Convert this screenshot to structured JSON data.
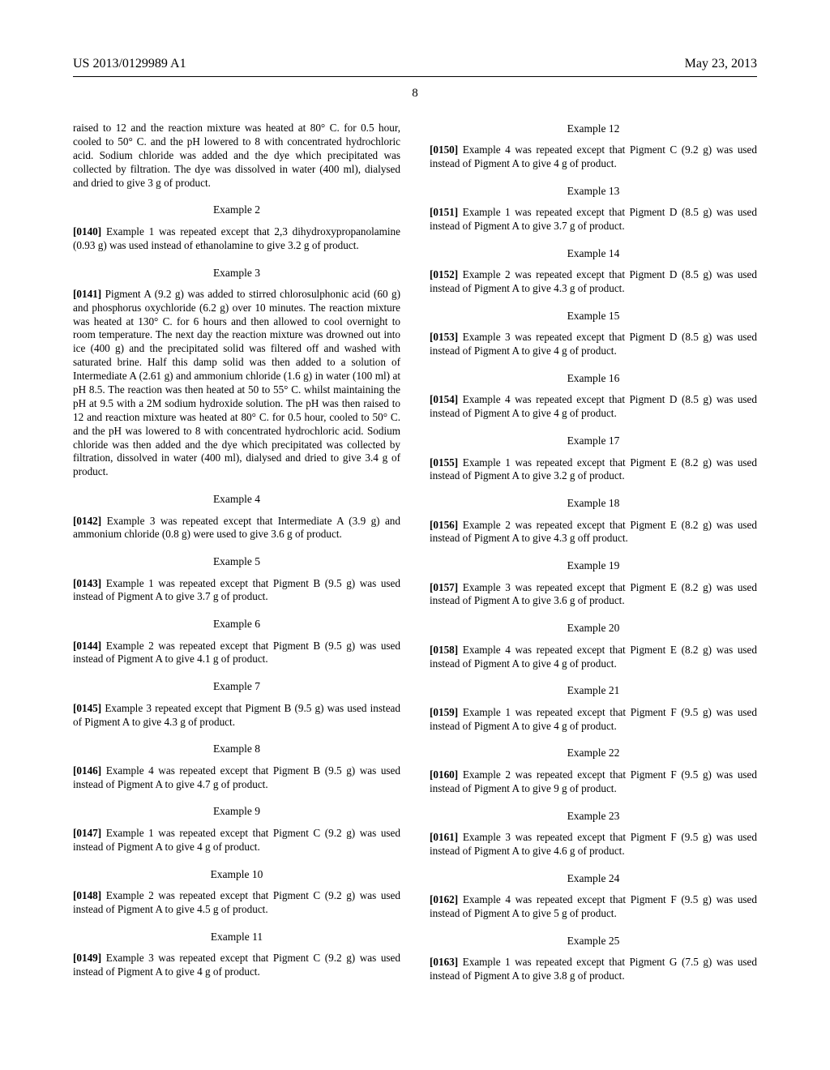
{
  "header": {
    "left": "US 2013/0129989 A1",
    "right": "May 23, 2013",
    "page_number": "8"
  },
  "col1": {
    "intro_para": "raised to 12 and the reaction mixture was heated at 80° C. for 0.5 hour, cooled to 50° C. and the pH lowered to 8 with concentrated hydrochloric acid. Sodium chloride was added and the dye which precipitated was collected by filtration. The dye was dissolved in water (400 ml), dialysed and dried to give 3 g of product.",
    "ex2_title": "Example 2",
    "ex2_num": "[0140]",
    "ex2_text": "    Example 1 was repeated except that 2,3 dihydroxypropanolamine (0.93 g) was used instead of ethanolamine to give 3.2 g of product.",
    "ex3_title": "Example 3",
    "ex3_num": "[0141]",
    "ex3_text": "    Pigment A (9.2 g) was added to stirred chlorosulphonic acid (60 g) and phosphorus oxychloride (6.2 g) over 10 minutes. The reaction mixture was heated at 130° C. for 6 hours and then allowed to cool overnight to room temperature. The next day the reaction mixture was drowned out into ice (400 g) and the precipitated solid was filtered off and washed with saturated brine. Half this damp solid was then added to a solution of Intermediate A (2.61 g) and ammonium chloride (1.6 g) in water (100 ml) at pH 8.5. The reaction was then heated at 50 to 55° C. whilst maintaining the pH at 9.5 with a 2M sodium hydroxide solution. The pH was then raised to 12 and reaction mixture was heated at 80° C. for 0.5 hour, cooled to 50° C. and the pH was lowered to 8 with concentrated hydrochloric acid. Sodium chloride was then added and the dye which precipitated was collected by filtration, dissolved in water (400 ml), dialysed and dried to give 3.4 g of product.",
    "ex4_title": "Example 4",
    "ex4_num": "[0142]",
    "ex4_text": "    Example 3 was repeated except that Intermediate A (3.9 g) and ammonium chloride (0.8 g) were used to give 3.6 g of product.",
    "ex5_title": "Example 5",
    "ex5_num": "[0143]",
    "ex5_text": "    Example 1 was repeated except that Pigment B (9.5 g) was used instead of Pigment A to give 3.7 g of product.",
    "ex6_title": "Example 6",
    "ex6_num": "[0144]",
    "ex6_text": "    Example 2 was repeated except that Pigment B (9.5 g) was used instead of Pigment A to give 4.1 g of product.",
    "ex7_title": "Example 7",
    "ex7_num": "[0145]",
    "ex7_text": "    Example 3 repeated except that Pigment B (9.5 g) was used instead of Pigment A to give 4.3 g of product.",
    "ex8_title": "Example 8",
    "ex8_num": "[0146]",
    "ex8_text": "    Example 4 was repeated except that Pigment B (9.5 g) was used instead of Pigment A to give 4.7 g of product.",
    "ex9_title": "Example 9",
    "ex9_num": "[0147]",
    "ex9_text": "    Example 1 was repeated except that Pigment C (9.2 g) was used instead of Pigment A to give 4 g of product.",
    "ex10_title": "Example 10",
    "ex10_num": "[0148]",
    "ex10_text": "    Example 2 was repeated except that Pigment C (9.2 g) was used instead of Pigment A to give 4.5 g of product."
  },
  "col2": {
    "ex11_title": "Example 11",
    "ex11_num": "[0149]",
    "ex11_text": "    Example 3 was repeated except that Pigment C (9.2 g) was used instead of Pigment A to give 4 g of product.",
    "ex12_title": "Example 12",
    "ex12_num": "[0150]",
    "ex12_text": "    Example 4 was repeated except that Pigment C (9.2 g) was used instead of Pigment A to give 4 g of product.",
    "ex13_title": "Example 13",
    "ex13_num": "[0151]",
    "ex13_text": "    Example 1 was repeated except that Pigment D (8.5 g) was used instead of Pigment A to give 3.7 g of product.",
    "ex14_title": "Example 14",
    "ex14_num": "[0152]",
    "ex14_text": "    Example 2 was repeated except that Pigment D (8.5 g) was used instead of Pigment A to give 4.3 g of product.",
    "ex15_title": "Example 15",
    "ex15_num": "[0153]",
    "ex15_text": "    Example 3 was repeated except that Pigment D (8.5 g) was used instead of Pigment A to give 4 g of product.",
    "ex16_title": "Example 16",
    "ex16_num": "[0154]",
    "ex16_text": "    Example 4 was repeated except that Pigment D (8.5 g) was used instead of Pigment A to give 4 g of product.",
    "ex17_title": "Example 17",
    "ex17_num": "[0155]",
    "ex17_text": "    Example 1 was repeated except that Pigment E (8.2 g) was used instead of Pigment A to give 3.2 g of product.",
    "ex18_title": "Example 18",
    "ex18_num": "[0156]",
    "ex18_text": "    Example 2 was repeated except that Pigment E (8.2 g) was used instead of Pigment A to give 4.3 g off product.",
    "ex19_title": "Example 19",
    "ex19_num": "[0157]",
    "ex19_text": "    Example 3 was repeated except that Pigment E (8.2 g) was used instead of Pigment A to give 3.6 g of product.",
    "ex20_title": "Example 20",
    "ex20_num": "[0158]",
    "ex20_text": "    Example 4 was repeated except that Pigment E (8.2 g) was used instead of Pigment A to give 4 g of product.",
    "ex21_title": "Example 21",
    "ex21_num": "[0159]",
    "ex21_text": "    Example 1 was repeated except that Pigment F (9.5 g) was used instead of Pigment A to give 4 g of product.",
    "ex22_title": "Example 22",
    "ex22_num": "[0160]",
    "ex22_text": "    Example 2 was repeated except that Pigment F (9.5 g) was used instead of Pigment A to give 9 g of product.",
    "ex23_title": "Example 23",
    "ex23_num": "[0161]",
    "ex23_text": "    Example 3 was repeated except that Pigment F (9.5 g) was used instead of Pigment A to give 4.6 g of product.",
    "ex24_title": "Example 24",
    "ex24_num": "[0162]",
    "ex24_text": "    Example 4 was repeated except that Pigment F (9.5 g) was used instead of Pigment A to give 5 g of product.",
    "ex25_title": "Example 25",
    "ex25_num": "[0163]",
    "ex25_text": "    Example 1 was repeated except that Pigment G (7.5 g) was used instead of Pigment A to give 3.8 g of product."
  }
}
